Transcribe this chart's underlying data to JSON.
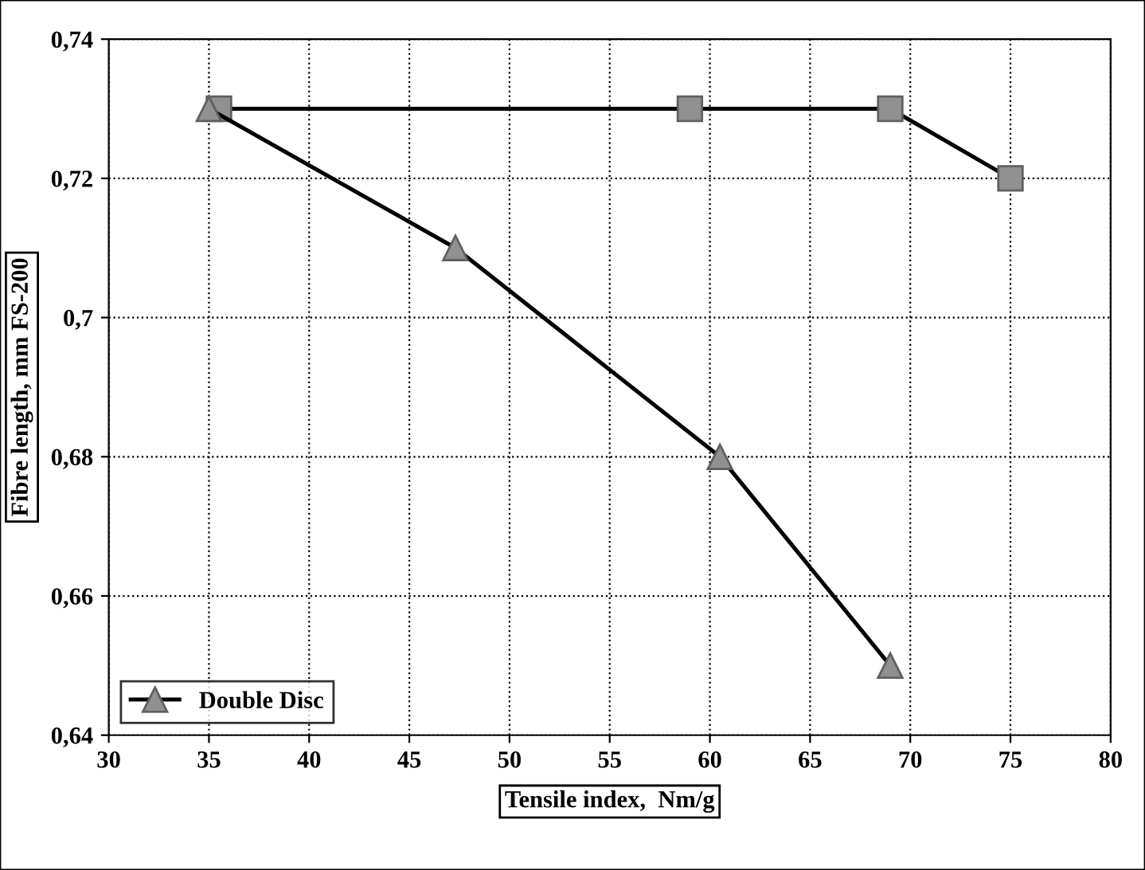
{
  "chart_data": {
    "type": "line",
    "xlabel": "Tensile index,  Nm/g",
    "ylabel": "Fibre length, mm FS-200",
    "series": [
      {
        "color": "#000000",
        "marker": "square",
        "x": [
          35.5,
          59,
          69,
          75
        ],
        "values": [
          0.73,
          0.73,
          0.73,
          0.72
        ]
      },
      {
        "name": "Double Disc",
        "color": "#000000",
        "marker": "triangle",
        "x": [
          35,
          47.3,
          60.5,
          69
        ],
        "values": [
          0.73,
          0.71,
          0.68,
          0.65
        ]
      }
    ],
    "xlim": [
      30,
      80
    ],
    "xticks": [
      30,
      35,
      40,
      45,
      50,
      55,
      60,
      65,
      70,
      75,
      80
    ],
    "ylim": [
      0.64,
      0.74
    ],
    "yticks": [
      {
        "value": 0.64,
        "label": "0,64"
      },
      {
        "value": 0.66,
        "label": "0,66"
      },
      {
        "value": 0.68,
        "label": "0,68"
      },
      {
        "value": 0.7,
        "label": "0,7"
      },
      {
        "value": 0.72,
        "label": "0,72"
      },
      {
        "value": 0.74,
        "label": "0,74"
      }
    ],
    "grid": true,
    "legend": "bottom left"
  }
}
